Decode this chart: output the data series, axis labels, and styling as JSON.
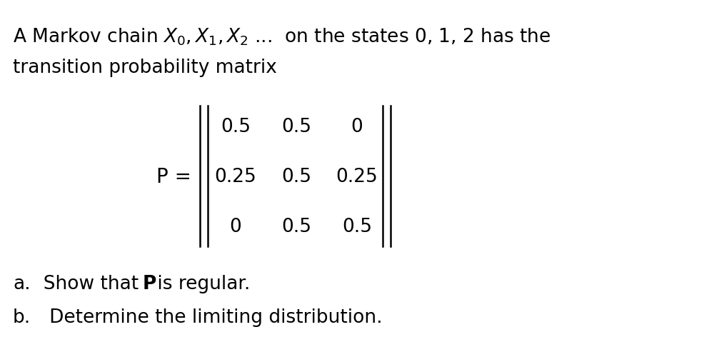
{
  "bg_color": "#ffffff",
  "text_color": "#000000",
  "line1": "A Markov chain $X_0, X_1, X_2$ ...  on the states 0, 1, 2 has the",
  "line2": "transition probability matrix",
  "matrix": [
    [
      "0.5",
      "0.5",
      "0"
    ],
    [
      "0.25",
      "0.5",
      "0.25"
    ],
    [
      "0",
      "0.5",
      "0.5"
    ]
  ],
  "part_a_prefix": "a.",
  "part_a_normal1": "  Show that ",
  "part_a_bold": "P",
  "part_a_normal2": " is regular.",
  "part_b": "b.   Determine the limiting distribution.",
  "font_size": 19,
  "font_size_matrix": 19
}
